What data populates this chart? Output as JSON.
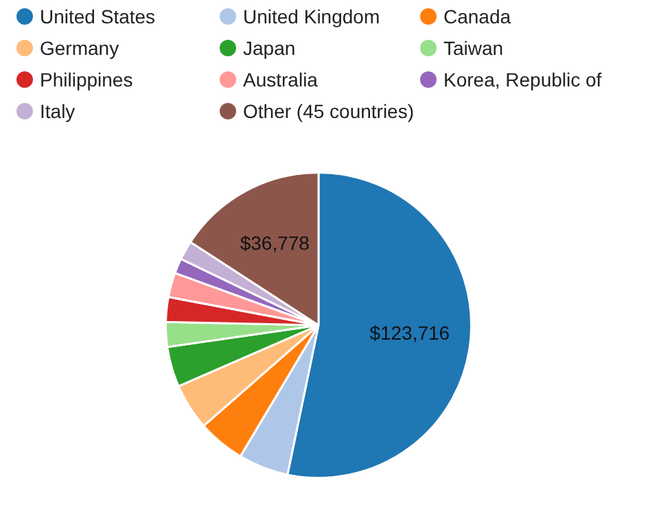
{
  "chart_data": {
    "type": "pie",
    "categories": [
      "United States",
      "United Kingdom",
      "Canada",
      "Germany",
      "Japan",
      "Taiwan",
      "Philippines",
      "Australia",
      "Korea, Republic of",
      "Italy",
      "Other (45 countries)"
    ],
    "values": [
      123716,
      12300,
      11600,
      11400,
      9900,
      6100,
      6100,
      6000,
      3700,
      4700,
      36778
    ],
    "value_labels": [
      "$123,716",
      null,
      null,
      null,
      null,
      null,
      null,
      null,
      null,
      null,
      "$36,778"
    ],
    "colors": [
      "#1f77b4",
      "#aec7e8",
      "#ff7f0e",
      "#ffbb78",
      "#2ca02c",
      "#98df8a",
      "#d62728",
      "#ff9896",
      "#9467bd",
      "#c5b0d5",
      "#8c564b"
    ],
    "legend": "top"
  }
}
